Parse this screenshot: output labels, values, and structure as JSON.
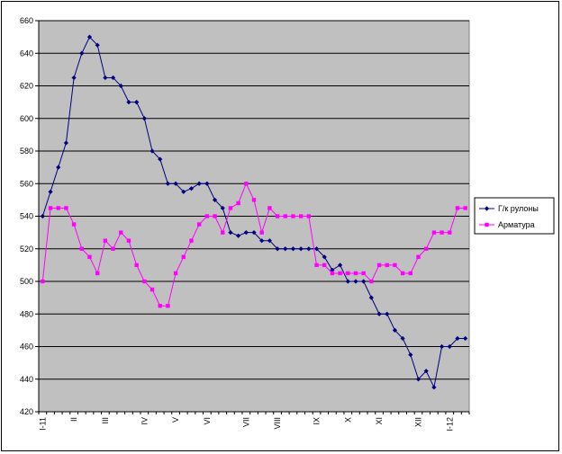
{
  "chart_data": {
    "type": "line",
    "title": "",
    "xlabel": "",
    "ylabel": "",
    "ylim": [
      420,
      660
    ],
    "yticks": [
      420,
      440,
      460,
      480,
      500,
      520,
      540,
      560,
      580,
      600,
      620,
      640,
      660
    ],
    "grid": "horizontal",
    "plot_background": "#c0c0c0",
    "legend_position": "right",
    "x_tick_labels": [
      {
        "index": 0,
        "label": "I-11"
      },
      {
        "index": 4,
        "label": "II"
      },
      {
        "index": 8,
        "label": "III"
      },
      {
        "index": 13,
        "label": "IV"
      },
      {
        "index": 17,
        "label": "V"
      },
      {
        "index": 21,
        "label": "VI"
      },
      {
        "index": 26,
        "label": "VII"
      },
      {
        "index": 30,
        "label": "VIII"
      },
      {
        "index": 35,
        "label": "IX"
      },
      {
        "index": 39,
        "label": "X"
      },
      {
        "index": 43,
        "label": "XI"
      },
      {
        "index": 48,
        "label": "XII"
      },
      {
        "index": 52,
        "label": "I-12"
      }
    ],
    "series": [
      {
        "name": "Г/к рулоны",
        "color": "#000080",
        "marker": "diamond",
        "values": [
          540,
          555,
          570,
          585,
          625,
          640,
          650,
          645,
          625,
          625,
          620,
          610,
          610,
          600,
          580,
          575,
          560,
          560,
          555,
          557,
          560,
          560,
          550,
          545,
          530,
          528,
          530,
          530,
          525,
          525,
          520,
          520,
          520,
          520,
          520,
          520,
          515,
          507,
          510,
          500,
          500,
          500,
          490,
          480,
          480,
          470,
          465,
          455,
          440,
          445,
          435,
          460,
          460,
          465,
          465
        ]
      },
      {
        "name": "Арматура",
        "color": "#ff00ff",
        "marker": "square",
        "values": [
          500,
          545,
          545,
          545,
          535,
          520,
          515,
          505,
          525,
          520,
          530,
          525,
          510,
          500,
          495,
          485,
          485,
          505,
          515,
          525,
          535,
          540,
          540,
          530,
          545,
          548,
          560,
          550,
          530,
          545,
          540,
          540,
          540,
          540,
          540,
          510,
          510,
          505,
          505,
          505,
          505,
          505,
          500,
          510,
          510,
          510,
          505,
          505,
          515,
          520,
          530,
          530,
          530,
          545,
          545
        ]
      }
    ]
  }
}
